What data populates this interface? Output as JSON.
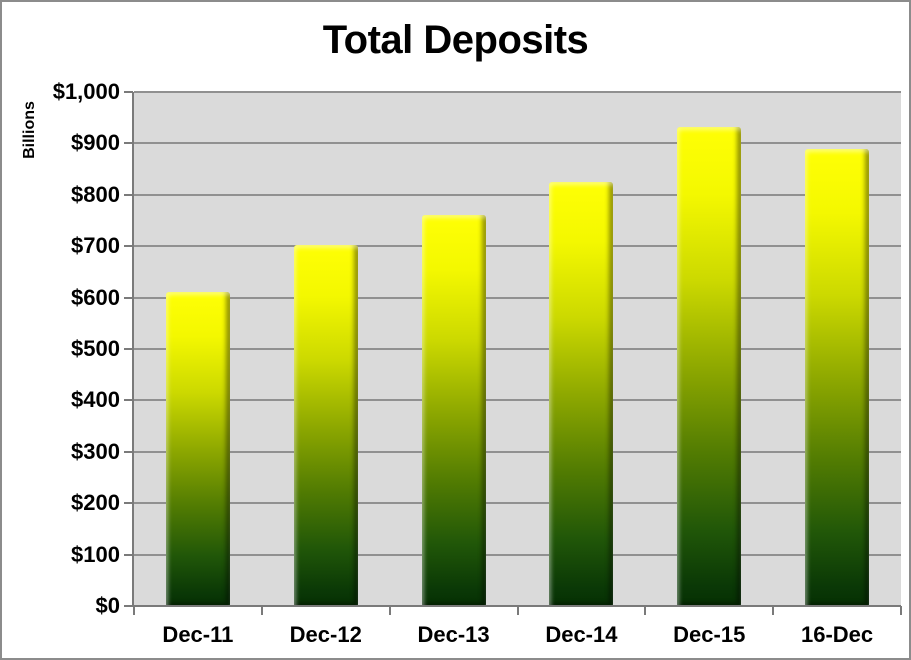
{
  "chart_data": {
    "type": "bar",
    "title": "Total Deposits",
    "ylabel": "Billions",
    "xlabel": "",
    "categories": [
      "Dec-11",
      "Dec-12",
      "Dec-13",
      "Dec-14",
      "Dec-15",
      "16-Dec"
    ],
    "values": [
      610,
      703,
      760,
      824,
      932,
      890
    ],
    "ylim": [
      0,
      1000
    ],
    "ytick_step": 100,
    "ytick_labels": [
      "$0",
      "$100",
      "$200",
      "$300",
      "$400",
      "$500",
      "$600",
      "$700",
      "$800",
      "$900",
      "$1,000"
    ],
    "grid": true,
    "legend": false
  },
  "colors": {
    "page_bg": "#ffffff",
    "frame_border": "#8c8c8c",
    "plot_bg": "#dadada",
    "gridline": "#909090",
    "axis": "#7a7a7a",
    "text": "#000000",
    "bar_gradient_colors": [
      "#ffff05",
      "#f4f800",
      "#ccd900",
      "#8fa900",
      "#527c02",
      "#215708",
      "#0a3806",
      "#063003"
    ],
    "bar_gradient_stops": [
      0,
      14,
      32,
      50,
      68,
      84,
      96,
      100
    ]
  }
}
